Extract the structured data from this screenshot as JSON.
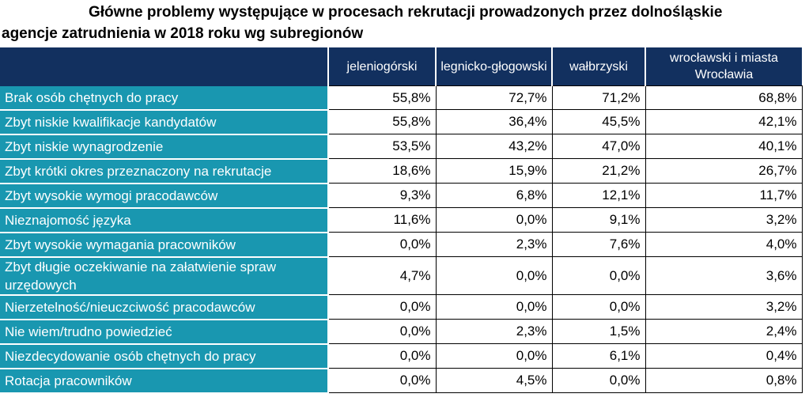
{
  "title": {
    "line1": "Główne problemy występujące w procesach rekrutacji prowadzonych przez dolnośląskie",
    "line2": "agencje zatrudnienia w 2018 roku wg subregionów"
  },
  "colors": {
    "header_bg": "#12305f",
    "label_bg": "#1997b0",
    "header_text": "#ffffff",
    "value_bg": "#ffffff"
  },
  "chart_data": {
    "type": "table",
    "title": "Główne problemy występujące w procesach rekrutacji prowadzonych przez dolnośląskie agencje zatrudnienia w 2018 roku wg subregionów",
    "columns": [
      "jeleniogórski",
      "legnicko-głogowski",
      "wałbrzyski",
      "wrocławski i miasta Wrocławia"
    ],
    "rows": [
      {
        "label": "Brak osób chętnych do pracy",
        "values": [
          "55,8%",
          "72,7%",
          "71,2%",
          "68,8%"
        ]
      },
      {
        "label": "Zbyt niskie kwalifikacje kandydatów",
        "values": [
          "55,8%",
          "36,4%",
          "45,5%",
          "42,1%"
        ]
      },
      {
        "label": "Zbyt niskie wynagrodzenie",
        "values": [
          "53,5%",
          "43,2%",
          "47,0%",
          "40,1%"
        ]
      },
      {
        "label": "Zbyt krótki okres przeznaczony na rekrutacje",
        "values": [
          "18,6%",
          "15,9%",
          "21,2%",
          "26,7%"
        ]
      },
      {
        "label": "Zbyt wysokie wymogi pracodawców",
        "values": [
          "9,3%",
          "6,8%",
          "12,1%",
          "11,7%"
        ]
      },
      {
        "label": "Nieznajomość języka",
        "values": [
          "11,6%",
          "0,0%",
          "9,1%",
          "3,2%"
        ]
      },
      {
        "label": "Zbyt wysokie wymagania pracowników",
        "values": [
          "0,0%",
          "2,3%",
          "7,6%",
          "4,0%"
        ]
      },
      {
        "label": "Zbyt długie oczekiwanie na załatwienie spraw urzędowych",
        "values": [
          "4,7%",
          "0,0%",
          "0,0%",
          "3,6%"
        ]
      },
      {
        "label": "Nierzetelność/nieuczciwość pracodawców",
        "values": [
          "0,0%",
          "0,0%",
          "0,0%",
          "3,2%"
        ]
      },
      {
        "label": "Nie wiem/trudno powiedzieć",
        "values": [
          "0,0%",
          "2,3%",
          "1,5%",
          "2,4%"
        ]
      },
      {
        "label": "Niezdecydowanie osób chętnych do pracy",
        "values": [
          "0,0%",
          "0,0%",
          "6,1%",
          "0,4%"
        ]
      },
      {
        "label": "Rotacja pracowników",
        "values": [
          "0,0%",
          "4,5%",
          "0,0%",
          "0,8%"
        ]
      }
    ]
  }
}
